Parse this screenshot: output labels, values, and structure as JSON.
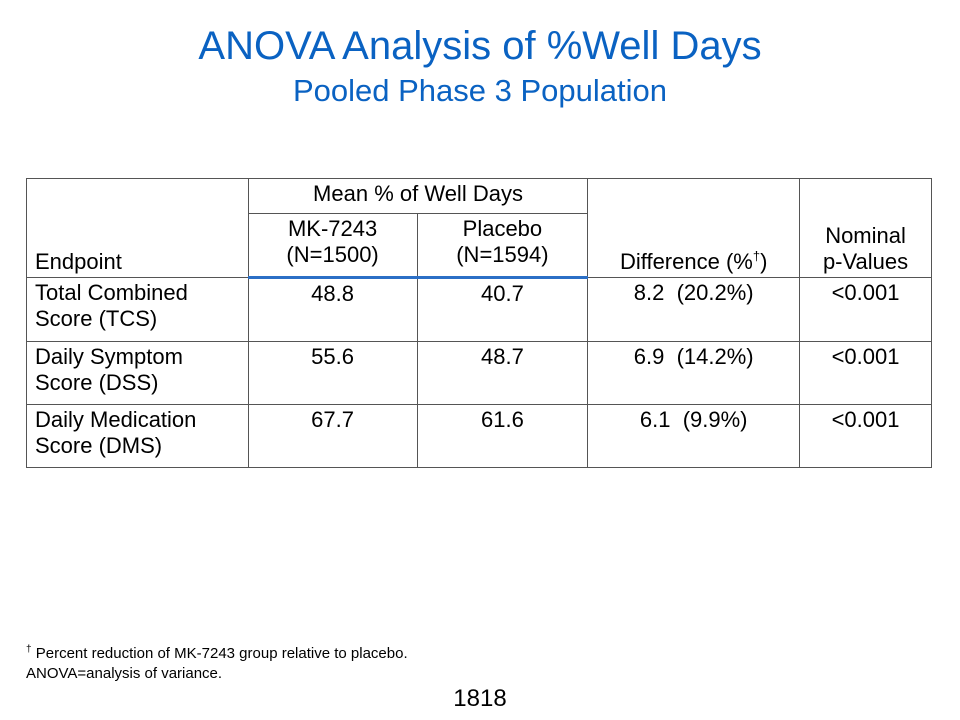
{
  "title": "ANOVA Analysis of %Well Days",
  "subtitle": "Pooled Phase 3 Population",
  "table": {
    "header_endpoint": "Endpoint",
    "header_mean": "Mean % of Well Days",
    "header_drug_line1": "MK-7243",
    "header_drug_line2": "(N=1500)",
    "header_placebo_line1": "Placebo",
    "header_placebo_line2": "(N=1594)",
    "header_difference": "Difference (%",
    "header_difference_mark": "†",
    "header_difference_close": ")",
    "header_pvalue_line1": "Nominal",
    "header_pvalue_line2": "p-Values",
    "rows": [
      {
        "endpoint_line1": "Total Combined",
        "endpoint_line2": "Score (TCS)",
        "drug": "48.8",
        "placebo": "40.7",
        "difference": "8.2  (20.2%)",
        "pvalue": "<0.001"
      },
      {
        "endpoint_line1": "Daily Symptom",
        "endpoint_line2": "Score (DSS)",
        "drug": "55.6",
        "placebo": "48.7",
        "difference": "6.9  (14.2%)",
        "pvalue": "<0.001"
      },
      {
        "endpoint_line1": "Daily Medication",
        "endpoint_line2": "Score (DMS)",
        "drug": "67.7",
        "placebo": "61.6",
        "difference": "6.1  (9.9%)",
        "pvalue": "<0.001"
      }
    ]
  },
  "footnote": {
    "mark": "†",
    "line1": " Percent reduction of MK-7243 group relative to placebo.",
    "line2": "ANOVA=analysis of variance."
  },
  "page_number": "1818",
  "colors": {
    "title": "#0a62c2",
    "header_rule": "#2b6fc6"
  }
}
